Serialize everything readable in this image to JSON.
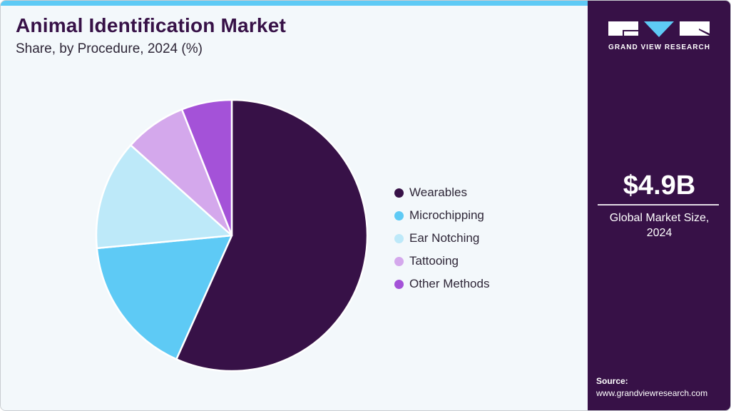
{
  "header": {
    "title": "Animal Identification Market",
    "subtitle": "Share, by Procedure, 2024 (%)"
  },
  "colors": {
    "accent_bar": "#5ecaf5",
    "panel_bg": "#371147",
    "chart_bg": "#f3f8fb"
  },
  "chart_data": {
    "type": "pie",
    "title": "Animal Identification Market",
    "subtitle": "Share, by Procedure, 2024 (%)",
    "categories": [
      "Wearables",
      "Microchipping",
      "Ear Notching",
      "Tattooing",
      "Other Methods"
    ],
    "values": [
      56.7,
      16.8,
      13.1,
      7.4,
      6.0
    ],
    "colors": [
      "#371147",
      "#5ecaf5",
      "#bde9f9",
      "#d4a8ec",
      "#a452d8"
    ],
    "start_angle_deg": 0,
    "direction": "clockwise",
    "legend_position": "right",
    "data_labels": false
  },
  "legend": {
    "items": [
      {
        "label": "Wearables",
        "color": "#371147"
      },
      {
        "label": "Microchipping",
        "color": "#5ecaf5"
      },
      {
        "label": "Ear Notching",
        "color": "#bde9f9"
      },
      {
        "label": "Tattooing",
        "color": "#d4a8ec"
      },
      {
        "label": "Other Methods",
        "color": "#a452d8"
      }
    ]
  },
  "side_panel": {
    "logo_text": "GRAND VIEW RESEARCH",
    "market_size": "$4.9B",
    "caption_line1": "Global Market Size,",
    "caption_line2": "2024",
    "source_label": "Source:",
    "source_url": "www.grandviewresearch.com"
  }
}
